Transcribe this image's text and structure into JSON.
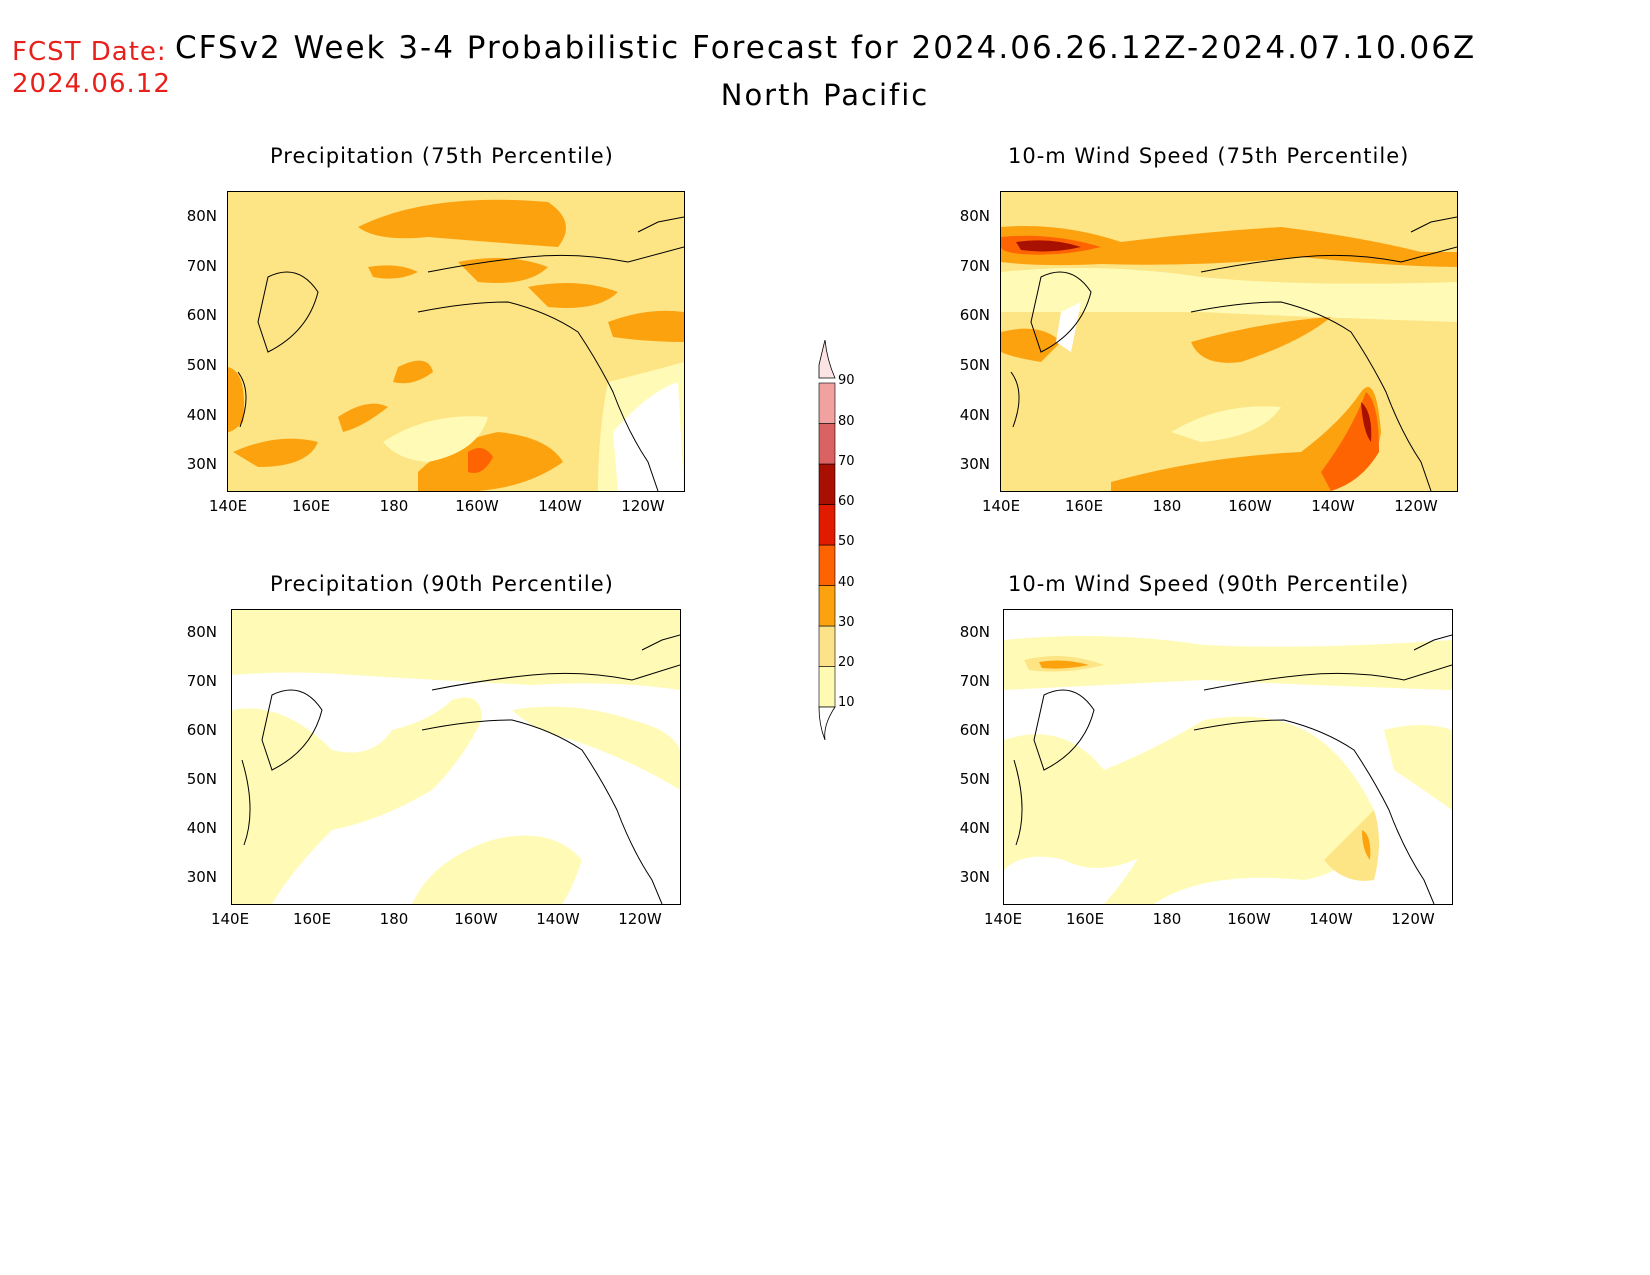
{
  "header": {
    "fcst_label": "FCST Date:",
    "fcst_date": "2024.06.12",
    "title": "CFSv2 Week 3-4 Probabilistic Forecast for 2024.06.26.12Z-2024.07.10.06Z",
    "region": "North Pacific"
  },
  "panels": [
    {
      "title": "Precipitation (75th Percentile)",
      "variable": "precipitation",
      "percentile": 75
    },
    {
      "title": "10-m Wind Speed (75th Percentile)",
      "variable": "wind",
      "percentile": 75
    },
    {
      "title": "Precipitation (90th Percentile)",
      "variable": "precipitation",
      "percentile": 90
    },
    {
      "title": "10-m Wind Speed (90th Percentile)",
      "variable": "wind",
      "percentile": 90
    }
  ],
  "axes": {
    "lat_labels": [
      "80N",
      "70N",
      "60N",
      "50N",
      "40N",
      "30N"
    ],
    "lon_labels": [
      "140E",
      "160E",
      "180",
      "160W",
      "140W",
      "120W"
    ]
  },
  "colorbar": {
    "levels": [
      "10",
      "20",
      "30",
      "40",
      "50",
      "60",
      "70",
      "80",
      "90"
    ],
    "colors": [
      "#fefab4",
      "#fce38a",
      "#fca20e",
      "#fd6300",
      "#e01b00",
      "#a90f00",
      "#db6263",
      "#f2a1a1",
      "#fde4e4"
    ]
  },
  "colors": {
    "c10": "#fffbb6",
    "c20": "#fde484",
    "c30": "#fda20f",
    "c40": "#fe6402",
    "c50": "#e01c00",
    "c60": "#a81000",
    "white": "#ffffff",
    "fcst_red": "#e8201c"
  }
}
